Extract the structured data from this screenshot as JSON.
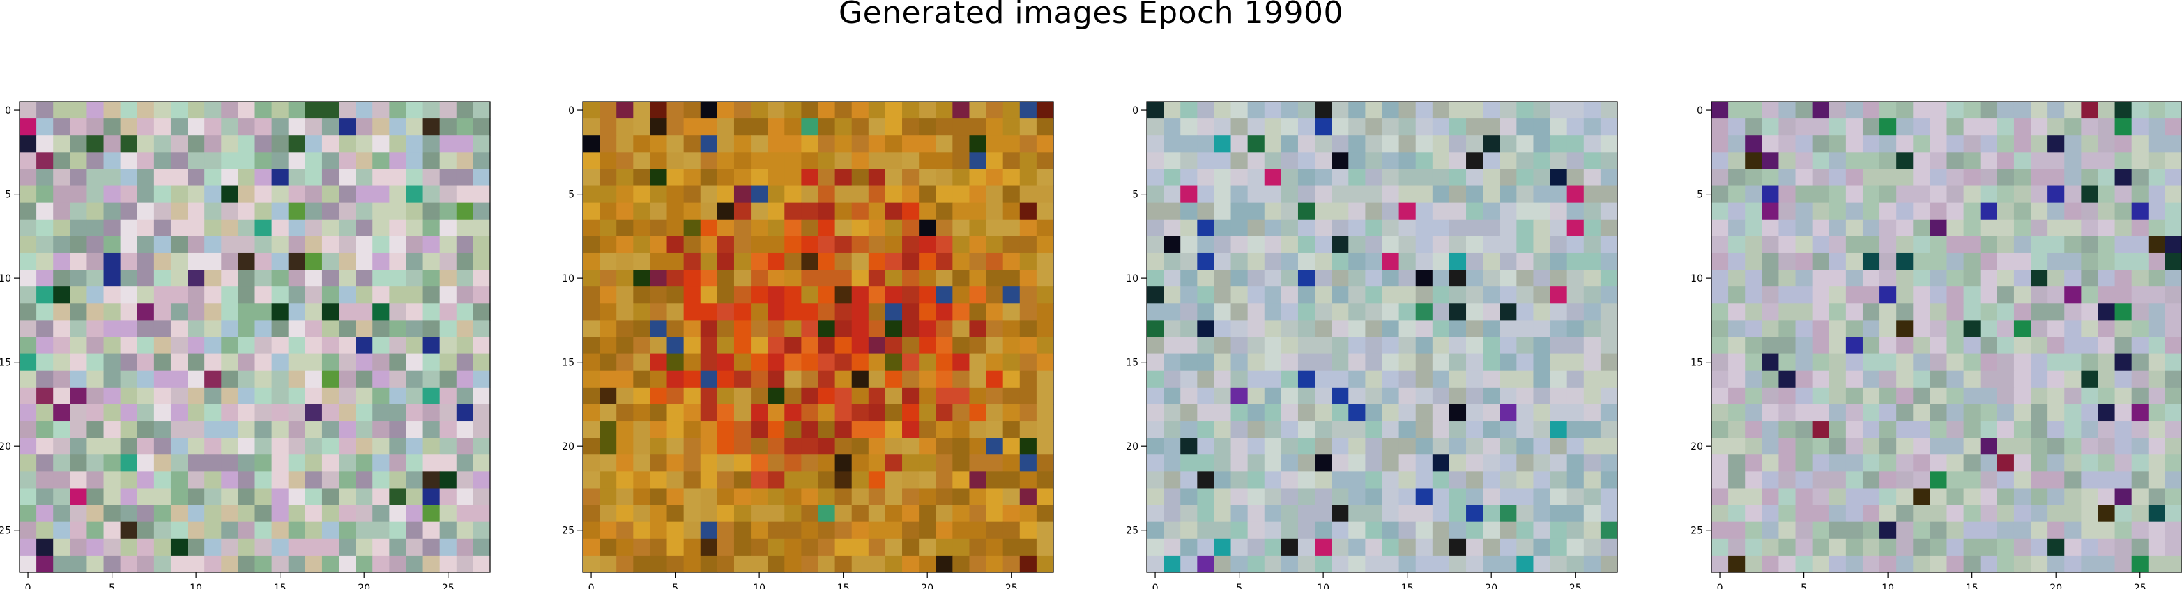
{
  "figure": {
    "suptitle": "Generated images Epoch 19900"
  },
  "chart_data": [
    {
      "type": "heatmap",
      "title": "",
      "xlabel": "",
      "ylabel": "",
      "xlim": [
        -0.5,
        27.5
      ],
      "ylim": [
        27.5,
        -0.5
      ],
      "xticks": [
        0,
        5,
        10,
        15,
        20,
        25
      ],
      "yticks": [
        0,
        5,
        10,
        15,
        20,
        25
      ],
      "grid": false,
      "image_shape": [
        28,
        28,
        3
      ],
      "palette": [
        "#cdbcc6",
        "#a9c5b5",
        "#b8c8a2",
        "#d4b6c8",
        "#9e8fa6",
        "#88b490",
        "#c9d4b8",
        "#e6d2d8",
        "#7f9a88",
        "#bca3b7",
        "#a7c3d6",
        "#d0c0a0",
        "#8aa79d",
        "#c7a6d2",
        "#b0d8c4",
        "#e8e0e6"
      ],
      "accents": [
        "#1a1a3a",
        "#0d3d1a",
        "#7a1f6a",
        "#1f2f8a",
        "#2a5a2a",
        "#c3166e",
        "#4a2a6a",
        "#0e6b3b",
        "#2aa585",
        "#3a2a1a",
        "#8a2a5a",
        "#5a9a3a"
      ],
      "accent_rate": 0.07,
      "seed": 11
    },
    {
      "type": "heatmap",
      "title": "",
      "xlabel": "",
      "ylabel": "",
      "xlim": [
        -0.5,
        27.5
      ],
      "ylim": [
        27.5,
        -0.5
      ],
      "xticks": [
        0,
        5,
        10,
        15,
        20,
        25
      ],
      "yticks": [
        0,
        5,
        10,
        15,
        20,
        25
      ],
      "grid": false,
      "image_shape": [
        28,
        28,
        3
      ],
      "palette": [
        "#c98a1e",
        "#b87a16",
        "#d9a22a",
        "#a86f1a",
        "#c49a3a",
        "#b5891f",
        "#d48a22",
        "#9a6a14",
        "#c7a040",
        "#ba7a28"
      ],
      "center_palette": [
        "#d93a10",
        "#e0560e",
        "#c82a1a",
        "#b3331c",
        "#e36a1c",
        "#a8281a",
        "#d24a2a",
        "#c6601e"
      ],
      "accents": [
        "#2a1a0a",
        "#0a0a14",
        "#4a2a0a",
        "#6a1a0a",
        "#1a3a0a",
        "#3aa070",
        "#7a2040",
        "#284a8a",
        "#5a5a0a"
      ],
      "accent_rate": 0.06,
      "seed": 29
    },
    {
      "type": "heatmap",
      "title": "",
      "xlabel": "",
      "ylabel": "",
      "xlim": [
        -0.5,
        27.5
      ],
      "ylim": [
        27.5,
        -0.5
      ],
      "xticks": [
        0,
        5,
        10,
        15,
        20,
        25
      ],
      "yticks": [
        0,
        5,
        10,
        15,
        20,
        25
      ],
      "grid": false,
      "image_shape": [
        28,
        28,
        3
      ],
      "palette": [
        "#b9c6c2",
        "#a7bfb8",
        "#c3c9d6",
        "#9fb8c6",
        "#b1b6c8",
        "#c6d0be",
        "#8fb0ba",
        "#d0cbd6",
        "#a9b1a4",
        "#b8c2d8",
        "#98c5b8",
        "#ccd8d2"
      ],
      "accents": [
        "#0a0a1a",
        "#0f2a2a",
        "#1a6a3a",
        "#1a3aa0",
        "#c61a6a",
        "#1aa0a0",
        "#0a1a40",
        "#6a2aa0",
        "#2a8a5a",
        "#1a1a1a"
      ],
      "accent_rate": 0.07,
      "seed": 53
    },
    {
      "type": "heatmap",
      "title": "",
      "xlabel": "",
      "ylabel": "",
      "xlim": [
        -0.5,
        27.5
      ],
      "ylim": [
        27.5,
        -0.5
      ],
      "xticks": [
        0,
        5,
        10,
        15,
        20,
        25
      ],
      "yticks": [
        0,
        5,
        10,
        15,
        20,
        25
      ],
      "grid": false,
      "image_shape": [
        28,
        28,
        3
      ],
      "palette": [
        "#b8c8b4",
        "#a6b9c8",
        "#c6b8cc",
        "#9cb8a4",
        "#bcb0c2",
        "#c8d2c0",
        "#90a89c",
        "#d4c8d8",
        "#a8c6b0",
        "#b6bcd6",
        "#c0a8c0",
        "#aed0c4"
      ],
      "accents": [
        "#1a1a4a",
        "#0f3a2a",
        "#7a1a7a",
        "#2a2aa0",
        "#3a2a0a",
        "#1a8a4a",
        "#8a1a3a",
        "#0a4a4a",
        "#5a1a6a"
      ],
      "accent_rate": 0.07,
      "seed": 97
    }
  ]
}
